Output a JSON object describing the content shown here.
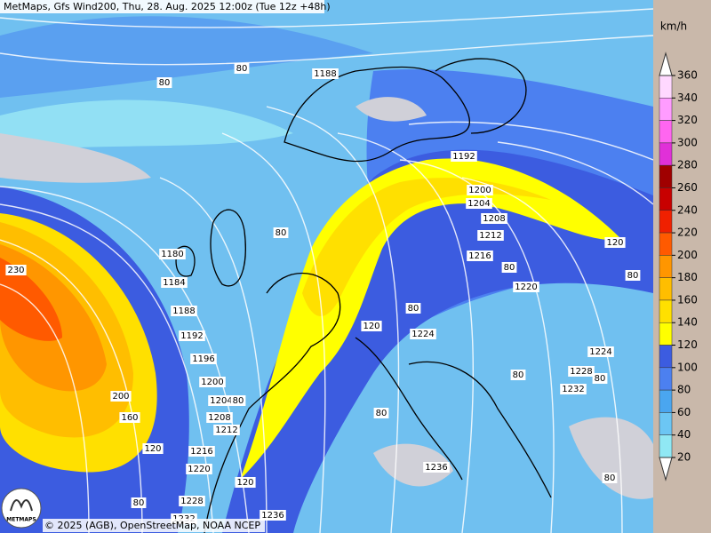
{
  "header": {
    "title": "MetMaps, Gfs Wind200, Thu, 28. Aug. 2025 12:00z (Tue 12z +48h)"
  },
  "footer": {
    "copyright": "© 2025 (AGB), OpenStreetMap, NOAA NCEP",
    "logo": "METMAPS"
  },
  "legend": {
    "unit": "km/h",
    "ticks": [
      360,
      340,
      320,
      300,
      280,
      260,
      240,
      220,
      200,
      180,
      160,
      140,
      120,
      100,
      80,
      60,
      40,
      20
    ],
    "colors": [
      "#ffd8ff",
      "#ff9cff",
      "#ff66f0",
      "#e030d8",
      "#a00000",
      "#c80000",
      "#f02000",
      "#ff5a00",
      "#ff9600",
      "#ffbe00",
      "#ffe000",
      "#ffff00",
      "#3c5ce0",
      "#4c80f0",
      "#4aa6f0",
      "#6cc6f4",
      "#90e8f4"
    ]
  },
  "map": {
    "contour_labels": [
      "80",
      "80",
      "1188",
      "80",
      "1184",
      "1180",
      "1188",
      "1192",
      "1196",
      "1200",
      "1204",
      "80",
      "1208",
      "1212",
      "1216",
      "1220",
      "1228",
      "1232",
      "1236",
      "120",
      "80",
      "120",
      "160",
      "200",
      "230",
      "1192",
      "1200",
      "1204",
      "1208",
      "1212",
      "1216",
      "80",
      "1220",
      "80",
      "120",
      "80",
      "120",
      "1224",
      "1224",
      "1228",
      "1232",
      "80",
      "80",
      "80",
      "1236",
      "80"
    ]
  }
}
